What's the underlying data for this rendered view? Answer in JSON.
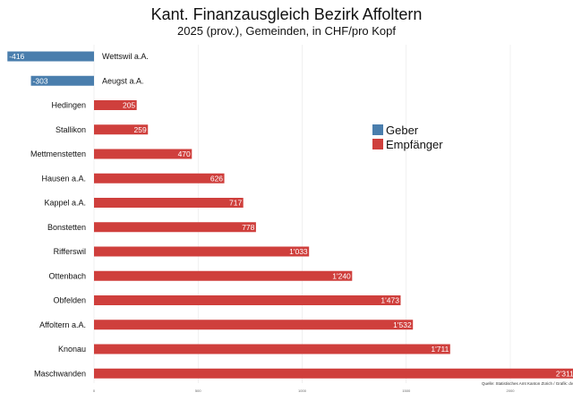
{
  "chart_data": {
    "type": "bar",
    "orientation": "horizontal",
    "title": "Kant. Finanzausgleich Bezirk Affoltern",
    "subtitle": "2025 (prov.), Gemeinden, in CHF/pro Kopf",
    "categories": [
      "Wettswil a.A.",
      "Aeugst a.A.",
      "Hedingen",
      "Stallikon",
      "Mettmenstetten",
      "Hausen a.A.",
      "Kappel a.A.",
      "Bonstetten",
      "Rifferswil",
      "Ottenbach",
      "Obfelden",
      "Affoltern a.A.",
      "Knonau",
      "Maschwanden"
    ],
    "values": [
      -416,
      -303,
      205,
      259,
      470,
      626,
      717,
      778,
      1033,
      1240,
      1473,
      1532,
      1711,
      2311
    ],
    "value_labels": [
      "-416",
      "-303",
      "205",
      "259",
      "470",
      "626",
      "717",
      "778",
      "1'033",
      "1'240",
      "1'473",
      "1'532",
      "1'711",
      "2'311"
    ],
    "group": [
      "Geber",
      "Geber",
      "Empfänger",
      "Empfänger",
      "Empfänger",
      "Empfänger",
      "Empfänger",
      "Empfänger",
      "Empfänger",
      "Empfänger",
      "Empfänger",
      "Empfänger",
      "Empfänger",
      "Empfänger"
    ],
    "legend": [
      {
        "name": "Geber",
        "color": "#4a7ead"
      },
      {
        "name": "Empfänger",
        "color": "#cf3f3c"
      }
    ],
    "x_ticks": [
      "0",
      "500",
      "1000",
      "1500",
      "2000"
    ],
    "xlim": [
      -420,
      2330
    ],
    "grid": true,
    "legend_position": "right-middle",
    "source": "Quelle: Statistisches Amt Kanton Zürich / Grafik: dv"
  }
}
